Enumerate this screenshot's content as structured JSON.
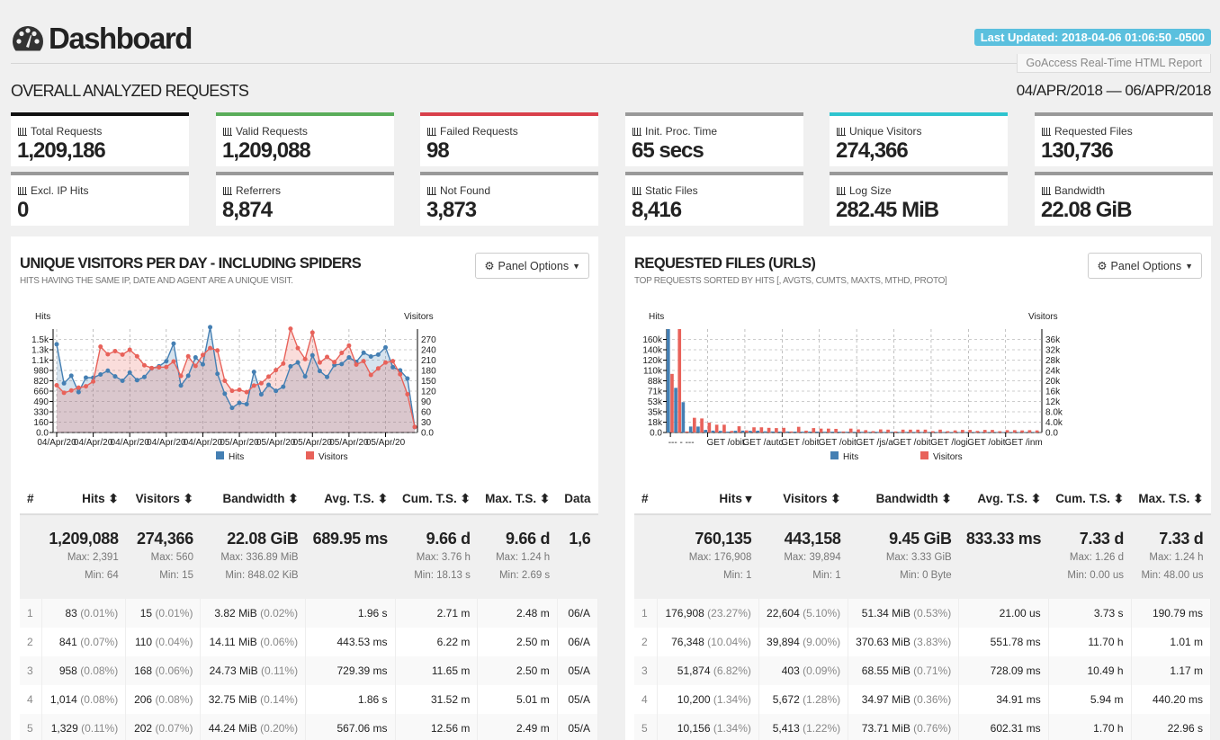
{
  "header": {
    "title": "Dashboard",
    "icon": "tachometer-icon",
    "last_updated": "Last Updated: 2018-04-06 01:06:50 -0500",
    "brand": "GoAccess Real-Time HTML Report",
    "overall": "OVERALL ANALYZED REQUESTS",
    "date_range": "04/APR/2018 — 06/APR/2018"
  },
  "cards": [
    {
      "label": "Total Requests",
      "value": "1,209,186",
      "color": "#111111"
    },
    {
      "label": "Valid Requests",
      "value": "1,209,088",
      "color": "#5aad5a"
    },
    {
      "label": "Failed Requests",
      "value": "98",
      "color": "#d9404b"
    },
    {
      "label": "Init. Proc. Time",
      "value": "65 secs",
      "color": "#999999"
    },
    {
      "label": "Unique Visitors",
      "value": "274,366",
      "color": "#2ec4cf"
    },
    {
      "label": "Requested Files",
      "value": "130,736",
      "color": "#999999"
    },
    {
      "label": "Excl. IP Hits",
      "value": "0",
      "color": "#999999"
    },
    {
      "label": "Referrers",
      "value": "8,874",
      "color": "#999999"
    },
    {
      "label": "Not Found",
      "value": "3,873",
      "color": "#999999"
    },
    {
      "label": "Static Files",
      "value": "8,416",
      "color": "#999999"
    },
    {
      "label": "Log Size",
      "value": "282.45 MiB",
      "color": "#999999"
    },
    {
      "label": "Bandwidth",
      "value": "22.08 GiB",
      "color": "#999999"
    }
  ],
  "panels": [
    {
      "title": "UNIQUE VISITORS PER DAY - INCLUDING SPIDERS",
      "subtitle": "HITS HAVING THE SAME IP, DATE AND AGENT ARE A UNIQUE VISIT.",
      "options": "Panel Options",
      "columns": [
        "#",
        "Hits ⬍",
        "Visitors ⬍",
        "Bandwidth ⬍",
        "Avg. T.S. ⬍",
        "Cum. T.S. ⬍",
        "Max. T.S. ⬍",
        "Data"
      ],
      "summary": [
        {
          "big": "",
          "max": "",
          "min": ""
        },
        {
          "big": "1,209,088",
          "max": "Max: 2,391",
          "min": "Min: 64"
        },
        {
          "big": "274,366",
          "max": "Max: 560",
          "min": "Min: 15"
        },
        {
          "big": "22.08 GiB",
          "max": "Max: 336.89 MiB",
          "min": "Min: 848.02 KiB"
        },
        {
          "big": "689.95 ms",
          "max": "",
          "min": ""
        },
        {
          "big": "9.66 d",
          "max": "Max: 3.76 h",
          "min": "Min: 18.13 s"
        },
        {
          "big": "9.66 d",
          "max": "Max: 1.24 h",
          "min": "Min: 2.69 s"
        },
        {
          "big": "1,6",
          "max": "",
          "min": ""
        }
      ],
      "rows": [
        [
          [
            "1",
            ""
          ],
          [
            "83",
            "(0.01%)"
          ],
          [
            "15",
            "(0.01%)"
          ],
          [
            "3.82 MiB",
            "(0.02%)"
          ],
          [
            "1.96 s",
            ""
          ],
          [
            "2.71 m",
            ""
          ],
          [
            "2.48 m",
            ""
          ],
          [
            "06/A",
            ""
          ]
        ],
        [
          [
            "2",
            ""
          ],
          [
            "841",
            "(0.07%)"
          ],
          [
            "110",
            "(0.04%)"
          ],
          [
            "14.11 MiB",
            "(0.06%)"
          ],
          [
            "443.53 ms",
            ""
          ],
          [
            "6.22 m",
            ""
          ],
          [
            "2.50 m",
            ""
          ],
          [
            "06/A",
            ""
          ]
        ],
        [
          [
            "3",
            ""
          ],
          [
            "958",
            "(0.08%)"
          ],
          [
            "168",
            "(0.06%)"
          ],
          [
            "24.73 MiB",
            "(0.11%)"
          ],
          [
            "729.39 ms",
            ""
          ],
          [
            "11.65 m",
            ""
          ],
          [
            "2.50 m",
            ""
          ],
          [
            "05/A",
            ""
          ]
        ],
        [
          [
            "4",
            ""
          ],
          [
            "1,014",
            "(0.08%)"
          ],
          [
            "206",
            "(0.08%)"
          ],
          [
            "32.75 MiB",
            "(0.14%)"
          ],
          [
            "1.86 s",
            ""
          ],
          [
            "31.52 m",
            ""
          ],
          [
            "5.01 m",
            ""
          ],
          [
            "05/A",
            ""
          ]
        ],
        [
          [
            "5",
            ""
          ],
          [
            "1,329",
            "(0.11%)"
          ],
          [
            "202",
            "(0.07%)"
          ],
          [
            "44.24 MiB",
            "(0.20%)"
          ],
          [
            "567.06 ms",
            ""
          ],
          [
            "12.56 m",
            ""
          ],
          [
            "2.49 m",
            ""
          ],
          [
            "05/A",
            ""
          ]
        ]
      ]
    },
    {
      "title": "REQUESTED FILES (URLS)",
      "subtitle": "TOP REQUESTS SORTED BY HITS [, AVGTS, CUMTS, MAXTS, MTHD, PROTO]",
      "options": "Panel Options",
      "columns": [
        "#",
        "Hits ▾",
        "Visitors ⬍",
        "Bandwidth ⬍",
        "Avg. T.S. ⬍",
        "Cum. T.S. ⬍",
        "Max. T.S. ⬍"
      ],
      "summary": [
        {
          "big": "",
          "max": "",
          "min": ""
        },
        {
          "big": "760,135",
          "max": "Max: 176,908",
          "min": "Min: 1"
        },
        {
          "big": "443,158",
          "max": "Max: 39,894",
          "min": "Min: 1"
        },
        {
          "big": "9.45 GiB",
          "max": "Max: 3.33 GiB",
          "min": "Min: 0 Byte"
        },
        {
          "big": "833.33 ms",
          "max": "",
          "min": ""
        },
        {
          "big": "7.33 d",
          "max": "Max: 1.26 d",
          "min": "Min: 0.00 us"
        },
        {
          "big": "7.33 d",
          "max": "Max: 1.24 h",
          "min": "Min: 48.00 us"
        }
      ],
      "rows": [
        [
          [
            "1",
            ""
          ],
          [
            "176,908",
            "(23.27%)"
          ],
          [
            "22,604",
            "(5.10%)"
          ],
          [
            "51.34 MiB",
            "(0.53%)"
          ],
          [
            "21.00 us",
            ""
          ],
          [
            "3.73 s",
            ""
          ],
          [
            "190.79 ms",
            ""
          ]
        ],
        [
          [
            "2",
            ""
          ],
          [
            "76,348",
            "(10.04%)"
          ],
          [
            "39,894",
            "(9.00%)"
          ],
          [
            "370.63 MiB",
            "(3.83%)"
          ],
          [
            "551.78 ms",
            ""
          ],
          [
            "11.70 h",
            ""
          ],
          [
            "1.01 m",
            ""
          ]
        ],
        [
          [
            "3",
            ""
          ],
          [
            "51,874",
            "(6.82%)"
          ],
          [
            "403",
            "(0.09%)"
          ],
          [
            "68.55 MiB",
            "(0.71%)"
          ],
          [
            "728.09 ms",
            ""
          ],
          [
            "10.49 h",
            ""
          ],
          [
            "1.17 m",
            ""
          ]
        ],
        [
          [
            "4",
            ""
          ],
          [
            "10,200",
            "(1.34%)"
          ],
          [
            "5,672",
            "(1.28%)"
          ],
          [
            "34.97 MiB",
            "(0.36%)"
          ],
          [
            "34.91 ms",
            ""
          ],
          [
            "5.94 m",
            ""
          ],
          [
            "440.20 ms",
            ""
          ]
        ],
        [
          [
            "5",
            ""
          ],
          [
            "10,156",
            "(1.34%)"
          ],
          [
            "5,413",
            "(1.22%)"
          ],
          [
            "73.71 MiB",
            "(0.76%)"
          ],
          [
            "602.31 ms",
            ""
          ],
          [
            "1.70 h",
            ""
          ],
          [
            "22.96 s",
            ""
          ]
        ]
      ]
    }
  ],
  "chart_data": [
    {
      "type": "area",
      "ylabel": "Hits",
      "y2label": "Visitors",
      "ylim": [
        0,
        1640
      ],
      "y2lim": [
        0,
        300
      ],
      "grid": true,
      "legend": "bottom",
      "yticks": [
        "0.0",
        "160",
        "330",
        "490",
        "660",
        "820",
        "980",
        "1.1k",
        "1.3k",
        "1.5k"
      ],
      "y2ticks": [
        "0.0",
        "30",
        "60",
        "90",
        "120",
        "150",
        "180",
        "210",
        "240",
        "270"
      ],
      "xticks": [
        "04/Apr/20",
        "04/Apr/20",
        "04/Apr/20",
        "04/Apr/20",
        "04/Apr/20",
        "05/Apr/20",
        "05/Apr/20",
        "05/Apr/20",
        "05/Apr/20",
        "05/Apr/20"
      ],
      "series": [
        {
          "name": "Hits",
          "color": "#447fb3",
          "values": [
            1400,
            780,
            900,
            640,
            870,
            870,
            920,
            980,
            890,
            820,
            950,
            830,
            880,
            1020,
            1050,
            1130,
            1410,
            745,
            900,
            1190,
            1080,
            1670,
            930,
            615,
            390,
            470,
            450,
            960,
            605,
            755,
            660,
            725,
            1050,
            1110,
            890,
            1225,
            975,
            880,
            1070,
            1085,
            1190,
            1120,
            1265,
            1205,
            1235,
            1350,
            1035,
            985,
            855,
            85
          ]
        },
        {
          "name": "Visitors",
          "color": "#e8625a",
          "values": [
            137,
            115,
            122,
            130,
            134,
            148,
            249,
            227,
            236,
            226,
            240,
            221,
            195,
            187,
            189,
            190,
            206,
            164,
            221,
            193,
            225,
            245,
            238,
            150,
            121,
            124,
            117,
            136,
            143,
            162,
            181,
            200,
            301,
            245,
            213,
            290,
            203,
            219,
            204,
            231,
            252,
            197,
            207,
            167,
            186,
            203,
            207,
            169,
            111,
            16
          ]
        }
      ]
    },
    {
      "type": "bar",
      "ylabel": "Hits",
      "y2label": "Visitors",
      "ylim": [
        0,
        176908
      ],
      "y2lim": [
        0,
        39894
      ],
      "grid": true,
      "legend": "bottom",
      "yticks": [
        "0.0",
        "18k",
        "35k",
        "53k",
        "71k",
        "88k",
        "110k",
        "120k",
        "140k",
        "160k"
      ],
      "y2ticks": [
        "0.0",
        "4.0k",
        "8.0k",
        "12k",
        "16k",
        "20k",
        "24k",
        "28k",
        "32k",
        "36k"
      ],
      "xticks": [
        "--- - ---",
        "GET /obit",
        "GET /autc",
        "GET /obit",
        "GET /obit",
        "GET /js/a",
        "GET /obit",
        "GET /logi",
        "GET /obit",
        "GET /inm"
      ],
      "series": [
        {
          "name": "Hits",
          "color": "#447fb3",
          "values": [
            176908,
            76348,
            51874,
            10200,
            10156,
            4500,
            3200,
            2800,
            1500,
            3000,
            3200,
            2900,
            3100,
            2000,
            1800,
            1600,
            1700,
            1500,
            1400,
            1600,
            1500,
            1300,
            1400,
            1400,
            1200,
            1100,
            1200,
            1000,
            1100,
            1000,
            1000,
            900,
            1000,
            900,
            900,
            900,
            800,
            900,
            800,
            800,
            800,
            700,
            800,
            700,
            700,
            700,
            700,
            700,
            600,
            600
          ]
        },
        {
          "name": "Visitors",
          "color": "#e8625a",
          "values": [
            22604,
            39894,
            403,
            5672,
            5413,
            3800,
            3000,
            3000,
            600,
            2400,
            800,
            2000,
            2000,
            1800,
            1700,
            1800,
            400,
            2200,
            700,
            1700,
            1500,
            1500,
            1400,
            400,
            1500,
            1200,
            900,
            500,
            1200,
            1100,
            400,
            1100,
            1100,
            1100,
            1100,
            500,
            1100,
            500,
            800,
            1000,
            1000,
            600,
            1000,
            1000,
            500,
            900,
            900,
            800,
            900,
            800
          ]
        }
      ]
    }
  ]
}
